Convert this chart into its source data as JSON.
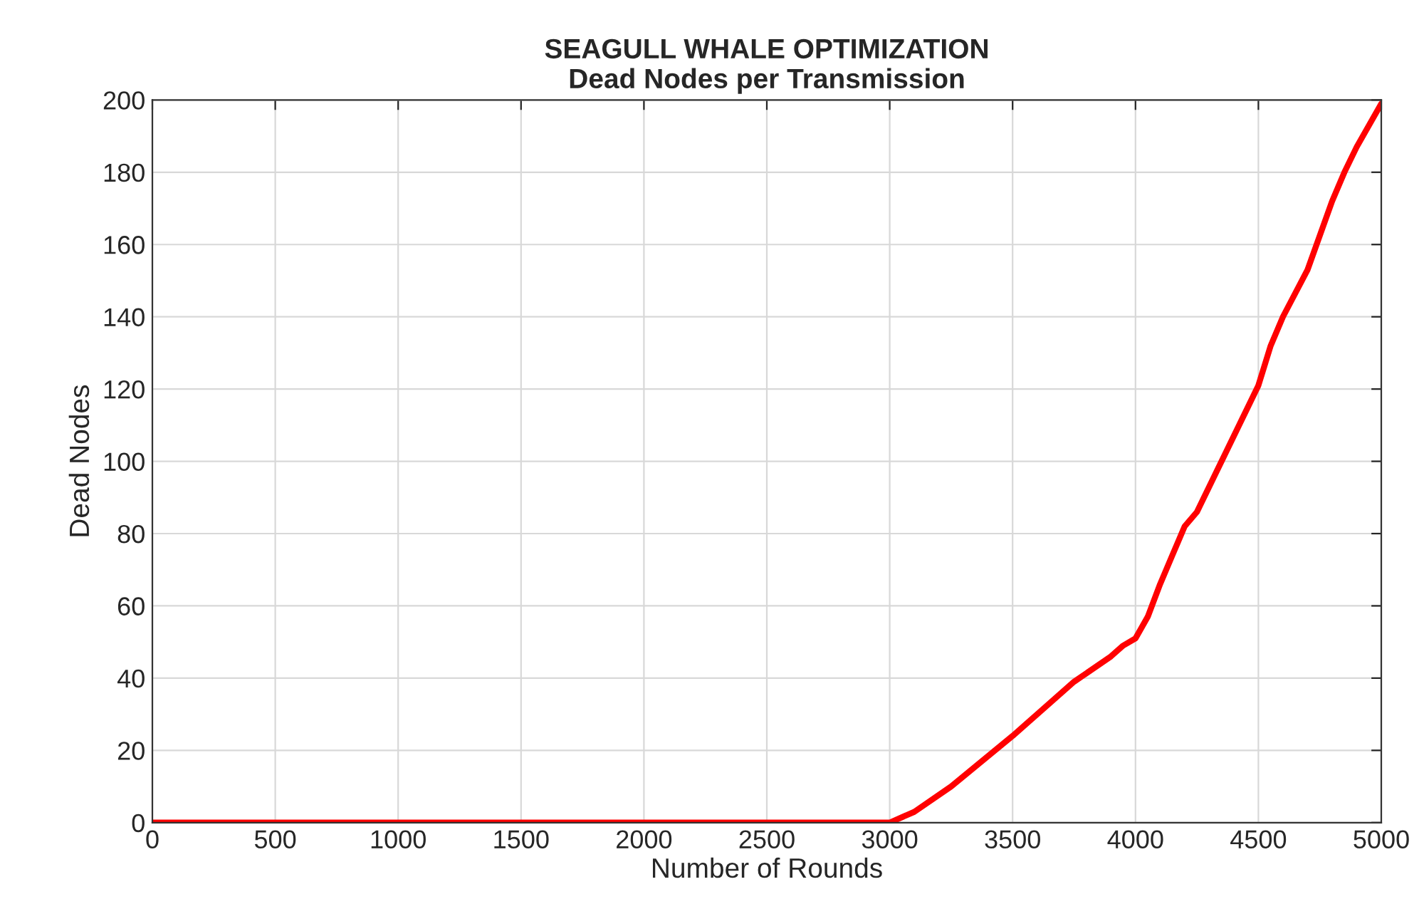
{
  "chart_data": {
    "type": "line",
    "title": "SEAGULL WHALE OPTIMIZATION\nDead Nodes per Transmission",
    "xlabel": "Number of Rounds",
    "ylabel": "Dead Nodes",
    "x": [
      0,
      3000,
      3100,
      3250,
      3500,
      3600,
      3750,
      3900,
      3950,
      4000,
      4050,
      4100,
      4150,
      4200,
      4250,
      4300,
      4400,
      4500,
      4550,
      4600,
      4700,
      4800,
      4850,
      4900,
      5000
    ],
    "series": [
      {
        "color": "#ff0000",
        "values": [
          0,
          0,
          3,
          10,
          24,
          30,
          39,
          46,
          49,
          51,
          57,
          66,
          74,
          82,
          86,
          93,
          107,
          121,
          132,
          140,
          153,
          172,
          180,
          187,
          199
        ]
      }
    ],
    "xlim": [
      0,
      5000
    ],
    "xticks": [
      0,
      500,
      1000,
      1500,
      2000,
      2500,
      3000,
      3500,
      4000,
      4500,
      5000
    ],
    "ylim": [
      0,
      200
    ],
    "yticks": [
      0,
      20,
      40,
      60,
      80,
      100,
      120,
      140,
      160,
      180,
      200
    ],
    "grid": true,
    "legend": false,
    "marker": "none",
    "line_style": "solid"
  }
}
